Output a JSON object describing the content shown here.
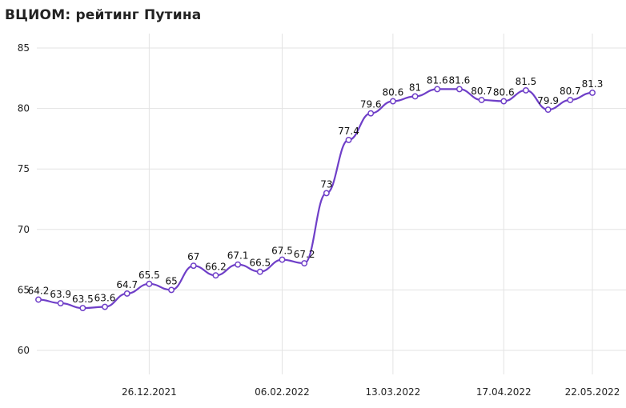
{
  "chart_data": {
    "type": "line",
    "title": "ВЦИОМ: рейтинг Путина",
    "xlabel": "",
    "ylabel": "",
    "ylim": [
      58,
      86
    ],
    "y_ticks": [
      "60",
      "65",
      "70",
      "75",
      "80",
      "85"
    ],
    "x_tick_labels": [
      "26.12.2021",
      "06.02.2022",
      "13.03.2022",
      "17.04.2022",
      "22.05.2022"
    ],
    "grid": true,
    "line_color": "#6f3fc8",
    "series": [
      {
        "values": [
          64.2,
          63.9,
          63.5,
          63.6,
          64.7,
          65.5,
          65,
          67,
          66.2,
          67.1,
          66.5,
          67.5,
          67.2,
          73,
          77.4,
          79.6,
          80.6,
          81,
          81.6,
          81.6,
          80.7,
          80.6,
          81.5,
          79.9,
          80.7,
          81.3
        ],
        "labels": [
          "64.2",
          "63.9",
          "63.5",
          "63.6",
          "64.7",
          "65.5",
          "65",
          "67",
          "66.2",
          "67.1",
          "66.5",
          "67.5",
          "67.2",
          "73",
          "77.4",
          "79.6",
          "80.6",
          "81",
          "81.6",
          "81.6",
          "80.7",
          "80.6",
          "81.5",
          "79.9",
          "80.7",
          "81.3"
        ]
      }
    ]
  }
}
